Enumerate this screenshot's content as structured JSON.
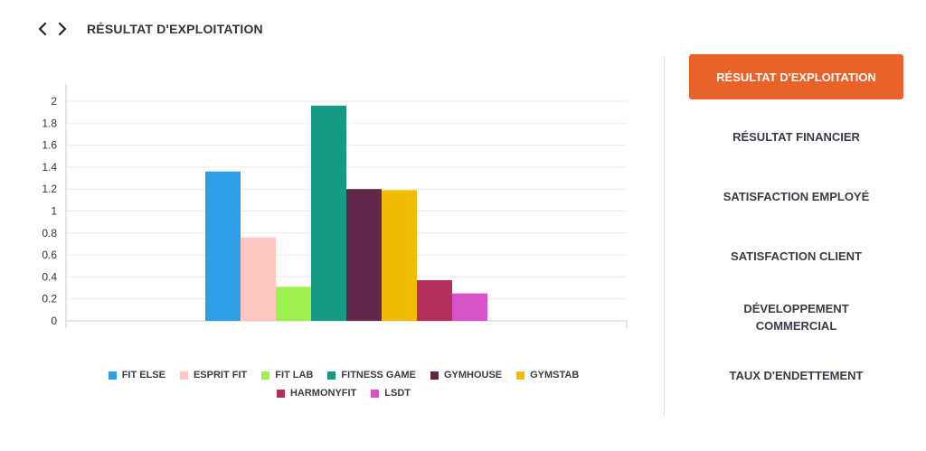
{
  "header": {
    "title": "RÉSULTAT D'EXPLOITATION",
    "prev_icon": "chevron-left-icon",
    "next_icon": "chevron-right-icon"
  },
  "sidebar": {
    "items": [
      {
        "label": "RÉSULTAT D'EXPLOITATION",
        "active": true
      },
      {
        "label": "RÉSULTAT FINANCIER",
        "active": false
      },
      {
        "label": "SATISFACTION EMPLOYÉ",
        "active": false
      },
      {
        "label": "SATISFACTION CLIENT",
        "active": false
      },
      {
        "label": "DÉVELOPPEMENT\nCOMMERCIAL",
        "active": false
      },
      {
        "label": "TAUX D'ENDETTEMENT",
        "active": false
      }
    ],
    "accent_color": "#e8622a"
  },
  "chart_data": {
    "type": "bar",
    "title": "",
    "xlabel": "",
    "ylabel": "",
    "ylim": [
      0,
      2
    ],
    "y_ticks": [
      "0",
      "0.2",
      "0.4",
      "0.6",
      "0.8",
      "1",
      "1.2",
      "1.4",
      "1.6",
      "1.8",
      "2"
    ],
    "y_tick_values": [
      0,
      0.2,
      0.4,
      0.6,
      0.8,
      1,
      1.2,
      1.4,
      1.6,
      1.8,
      2
    ],
    "grid": true,
    "legend_position": "bottom",
    "series": [
      {
        "name": "FIT ELSE",
        "value": 1.36,
        "color": "#2e9fe6"
      },
      {
        "name": "ESPRIT FIT",
        "value": 0.76,
        "color": "#ffc7c2"
      },
      {
        "name": "FIT LAB",
        "value": 0.31,
        "color": "#9ef04c"
      },
      {
        "name": "FITNESS GAME",
        "value": 1.96,
        "color": "#179984"
      },
      {
        "name": "GYMHOUSE",
        "value": 1.2,
        "color": "#62284c"
      },
      {
        "name": "GYMSTAB",
        "value": 1.19,
        "color": "#efbc00"
      },
      {
        "name": "HARMONYFIT",
        "value": 0.37,
        "color": "#b3305c"
      },
      {
        "name": "LSDT",
        "value": 0.25,
        "color": "#d652c7"
      }
    ]
  }
}
